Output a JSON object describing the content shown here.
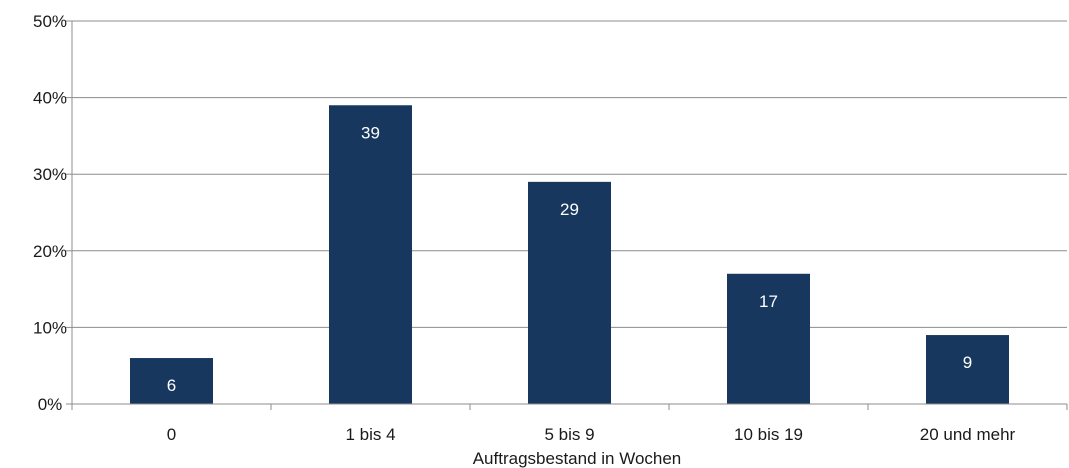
{
  "chart_data": {
    "type": "bar",
    "categories": [
      "0",
      "1 bis 4",
      "5 bis 9",
      "10 bis 19",
      "20 und mehr"
    ],
    "values": [
      6,
      39,
      29,
      17,
      9
    ],
    "data_labels": [
      "6",
      "39",
      "29",
      "17",
      "9"
    ],
    "xlabel": "Auftragsbestand in Wochen",
    "ylabel": "",
    "ylim": [
      0,
      50
    ],
    "yticks": [
      0,
      10,
      20,
      30,
      40,
      50
    ],
    "ytick_labels": [
      "0%",
      "10%",
      "20%",
      "30%",
      "40%",
      "50%"
    ],
    "grid": true,
    "legend": "none",
    "colors": {
      "bar": "#17375e",
      "grid": "#8c8c8c",
      "axis": "#8c8c8c"
    }
  }
}
